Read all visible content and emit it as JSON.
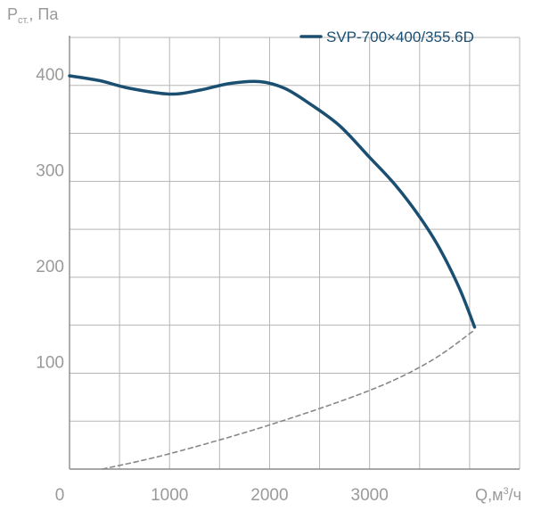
{
  "chart_data": {
    "type": "line",
    "y_axis_title": {
      "main": "P",
      "subscript": "ст.",
      "unit": ", Па"
    },
    "x_axis_title": {
      "main": "Q,м",
      "superscript": "3",
      "unit": "/ч"
    },
    "x_ticks": [
      "0",
      "1000",
      "2000",
      "3000"
    ],
    "y_ticks": [
      "100",
      "200",
      "300",
      "400"
    ],
    "xlim": [
      0,
      4500
    ],
    "ylim": [
      0,
      450
    ],
    "grid": true,
    "legend_position": "top-right",
    "series": [
      {
        "name": "SVP-700×400/355.6D",
        "style": "solid",
        "color": "#1b4f72",
        "points": [
          {
            "x": 0,
            "y": 410
          },
          {
            "x": 300,
            "y": 405
          },
          {
            "x": 600,
            "y": 397
          },
          {
            "x": 1000,
            "y": 391
          },
          {
            "x": 1300,
            "y": 395
          },
          {
            "x": 1600,
            "y": 402
          },
          {
            "x": 1900,
            "y": 404
          },
          {
            "x": 2150,
            "y": 397
          },
          {
            "x": 2400,
            "y": 381
          },
          {
            "x": 2700,
            "y": 358
          },
          {
            "x": 3000,
            "y": 325
          },
          {
            "x": 3250,
            "y": 297
          },
          {
            "x": 3500,
            "y": 263
          },
          {
            "x": 3700,
            "y": 230
          },
          {
            "x": 3900,
            "y": 188
          },
          {
            "x": 4050,
            "y": 148
          }
        ]
      },
      {
        "style": "dashed",
        "color": "#888888",
        "points": [
          {
            "x": 330,
            "y": 0
          },
          {
            "x": 1000,
            "y": 16
          },
          {
            "x": 2000,
            "y": 46
          },
          {
            "x": 3000,
            "y": 82
          },
          {
            "x": 3600,
            "y": 112
          },
          {
            "x": 4050,
            "y": 145
          }
        ]
      }
    ]
  }
}
